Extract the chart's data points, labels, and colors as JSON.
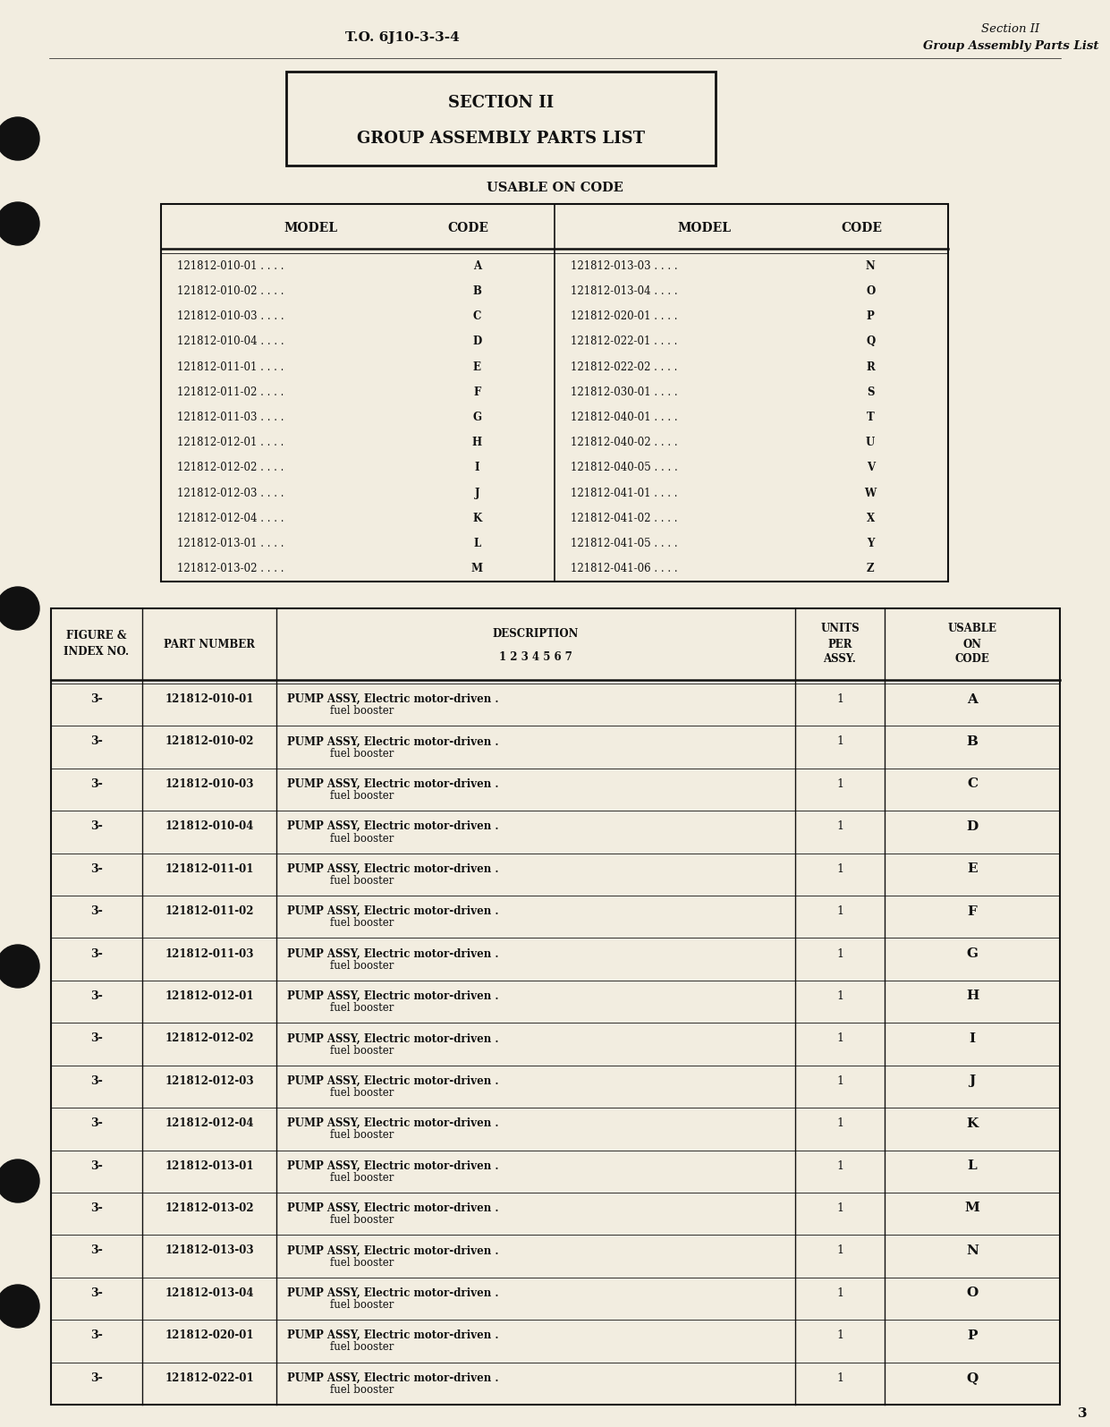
{
  "bg_color": "#f2ede0",
  "header_left": "T.O. 6J10-3-3-4",
  "header_right_line1": "Section II",
  "header_right_line2": "Group Assembly Parts List",
  "section_title_line1": "SECTION II",
  "section_title_line2": "GROUP ASSEMBLY PARTS LIST",
  "usable_title": "USABLE ON CODE",
  "usable_table_left": [
    [
      "121812-010-01 . . . .",
      "A"
    ],
    [
      "121812-010-02 . . . .",
      "B"
    ],
    [
      "121812-010-03 . . . .",
      "C"
    ],
    [
      "121812-010-04 . . . .",
      "D"
    ],
    [
      "121812-011-01 . . . .",
      "E"
    ],
    [
      "121812-011-02 . . . .",
      "F"
    ],
    [
      "121812-011-03 . . . .",
      "G"
    ],
    [
      "121812-012-01 . . . .",
      "H"
    ],
    [
      "121812-012-02 . . . .",
      "I"
    ],
    [
      "121812-012-03 . . . .",
      "J"
    ],
    [
      "121812-012-04 . . . .",
      "K"
    ],
    [
      "121812-013-01 . . . .",
      "L"
    ],
    [
      "121812-013-02 . . . .",
      "M"
    ]
  ],
  "usable_table_right": [
    [
      "121812-013-03 . . . .",
      "N"
    ],
    [
      "121812-013-04 . . . .",
      "O"
    ],
    [
      "121812-020-01 . . . .",
      "P"
    ],
    [
      "121812-022-01 . . . .",
      "Q"
    ],
    [
      "121812-022-02 . . . .",
      "R"
    ],
    [
      "121812-030-01 . . . .",
      "S"
    ],
    [
      "121812-040-01 . . . .",
      "T"
    ],
    [
      "121812-040-02 . . . .",
      "U"
    ],
    [
      "121812-040-05 . . . .",
      "V"
    ],
    [
      "121812-041-01 . . . .",
      "W"
    ],
    [
      "121812-041-02 . . . .",
      "X"
    ],
    [
      "121812-041-05 . . . .",
      "Y"
    ],
    [
      "121812-041-06 . . . .",
      "Z"
    ]
  ],
  "parts_rows": [
    [
      "3-",
      "121812-010-01",
      "PUMP ASSY, Electric motor-driven .",
      "fuel booster",
      "1",
      "A"
    ],
    [
      "3-",
      "121812-010-02",
      "PUMP ASSY, Electric motor-driven .",
      "fuel booster",
      "1",
      "B"
    ],
    [
      "3-",
      "121812-010-03",
      "PUMP ASSY, Electric motor-driven .",
      "fuel booster",
      "1",
      "C"
    ],
    [
      "3-",
      "121812-010-04",
      "PUMP ASSY, Electric motor-driven .",
      "fuel booster",
      "1",
      "D"
    ],
    [
      "3-",
      "121812-011-01",
      "PUMP ASSY, Electric motor-driven .",
      "fuel booster",
      "1",
      "E"
    ],
    [
      "3-",
      "121812-011-02",
      "PUMP ASSY, Electric motor-driven .",
      "fuel booster",
      "1",
      "F"
    ],
    [
      "3-",
      "121812-011-03",
      "PUMP ASSY, Electric motor-driven .",
      "fuel booster",
      "1",
      "G"
    ],
    [
      "3-",
      "121812-012-01",
      "PUMP ASSY, Electric motor-driven .",
      "fuel booster",
      "1",
      "H"
    ],
    [
      "3-",
      "121812-012-02",
      "PUMP ASSY, Electric motor-driven .",
      "fuel booster",
      "1",
      "I"
    ],
    [
      "3-",
      "121812-012-03",
      "PUMP ASSY, Electric motor-driven .",
      "fuel booster",
      "1",
      "J"
    ],
    [
      "3-",
      "121812-012-04",
      "PUMP ASSY, Electric motor-driven .",
      "fuel booster",
      "1",
      "K"
    ],
    [
      "3-",
      "121812-013-01",
      "PUMP ASSY, Electric motor-driven .",
      "fuel booster",
      "1",
      "L"
    ],
    [
      "3-",
      "121812-013-02",
      "PUMP ASSY, Electric motor-driven .",
      "fuel booster",
      "1",
      "M"
    ],
    [
      "3-",
      "121812-013-03",
      "PUMP ASSY, Electric motor-driven .",
      "fuel booster",
      "1",
      "N"
    ],
    [
      "3-",
      "121812-013-04",
      "PUMP ASSY, Electric motor-driven .",
      "fuel booster",
      "1",
      "O"
    ],
    [
      "3-",
      "121812-020-01",
      "PUMP ASSY, Electric motor-driven .",
      "fuel booster",
      "1",
      "P"
    ],
    [
      "3-",
      "121812-022-01",
      "PUMP ASSY, Electric motor-driven .",
      "fuel booster",
      "1",
      "Q"
    ]
  ],
  "page_number": "3",
  "dot_positions_y": [
    155,
    250,
    680,
    1080,
    1320,
    1460
  ]
}
